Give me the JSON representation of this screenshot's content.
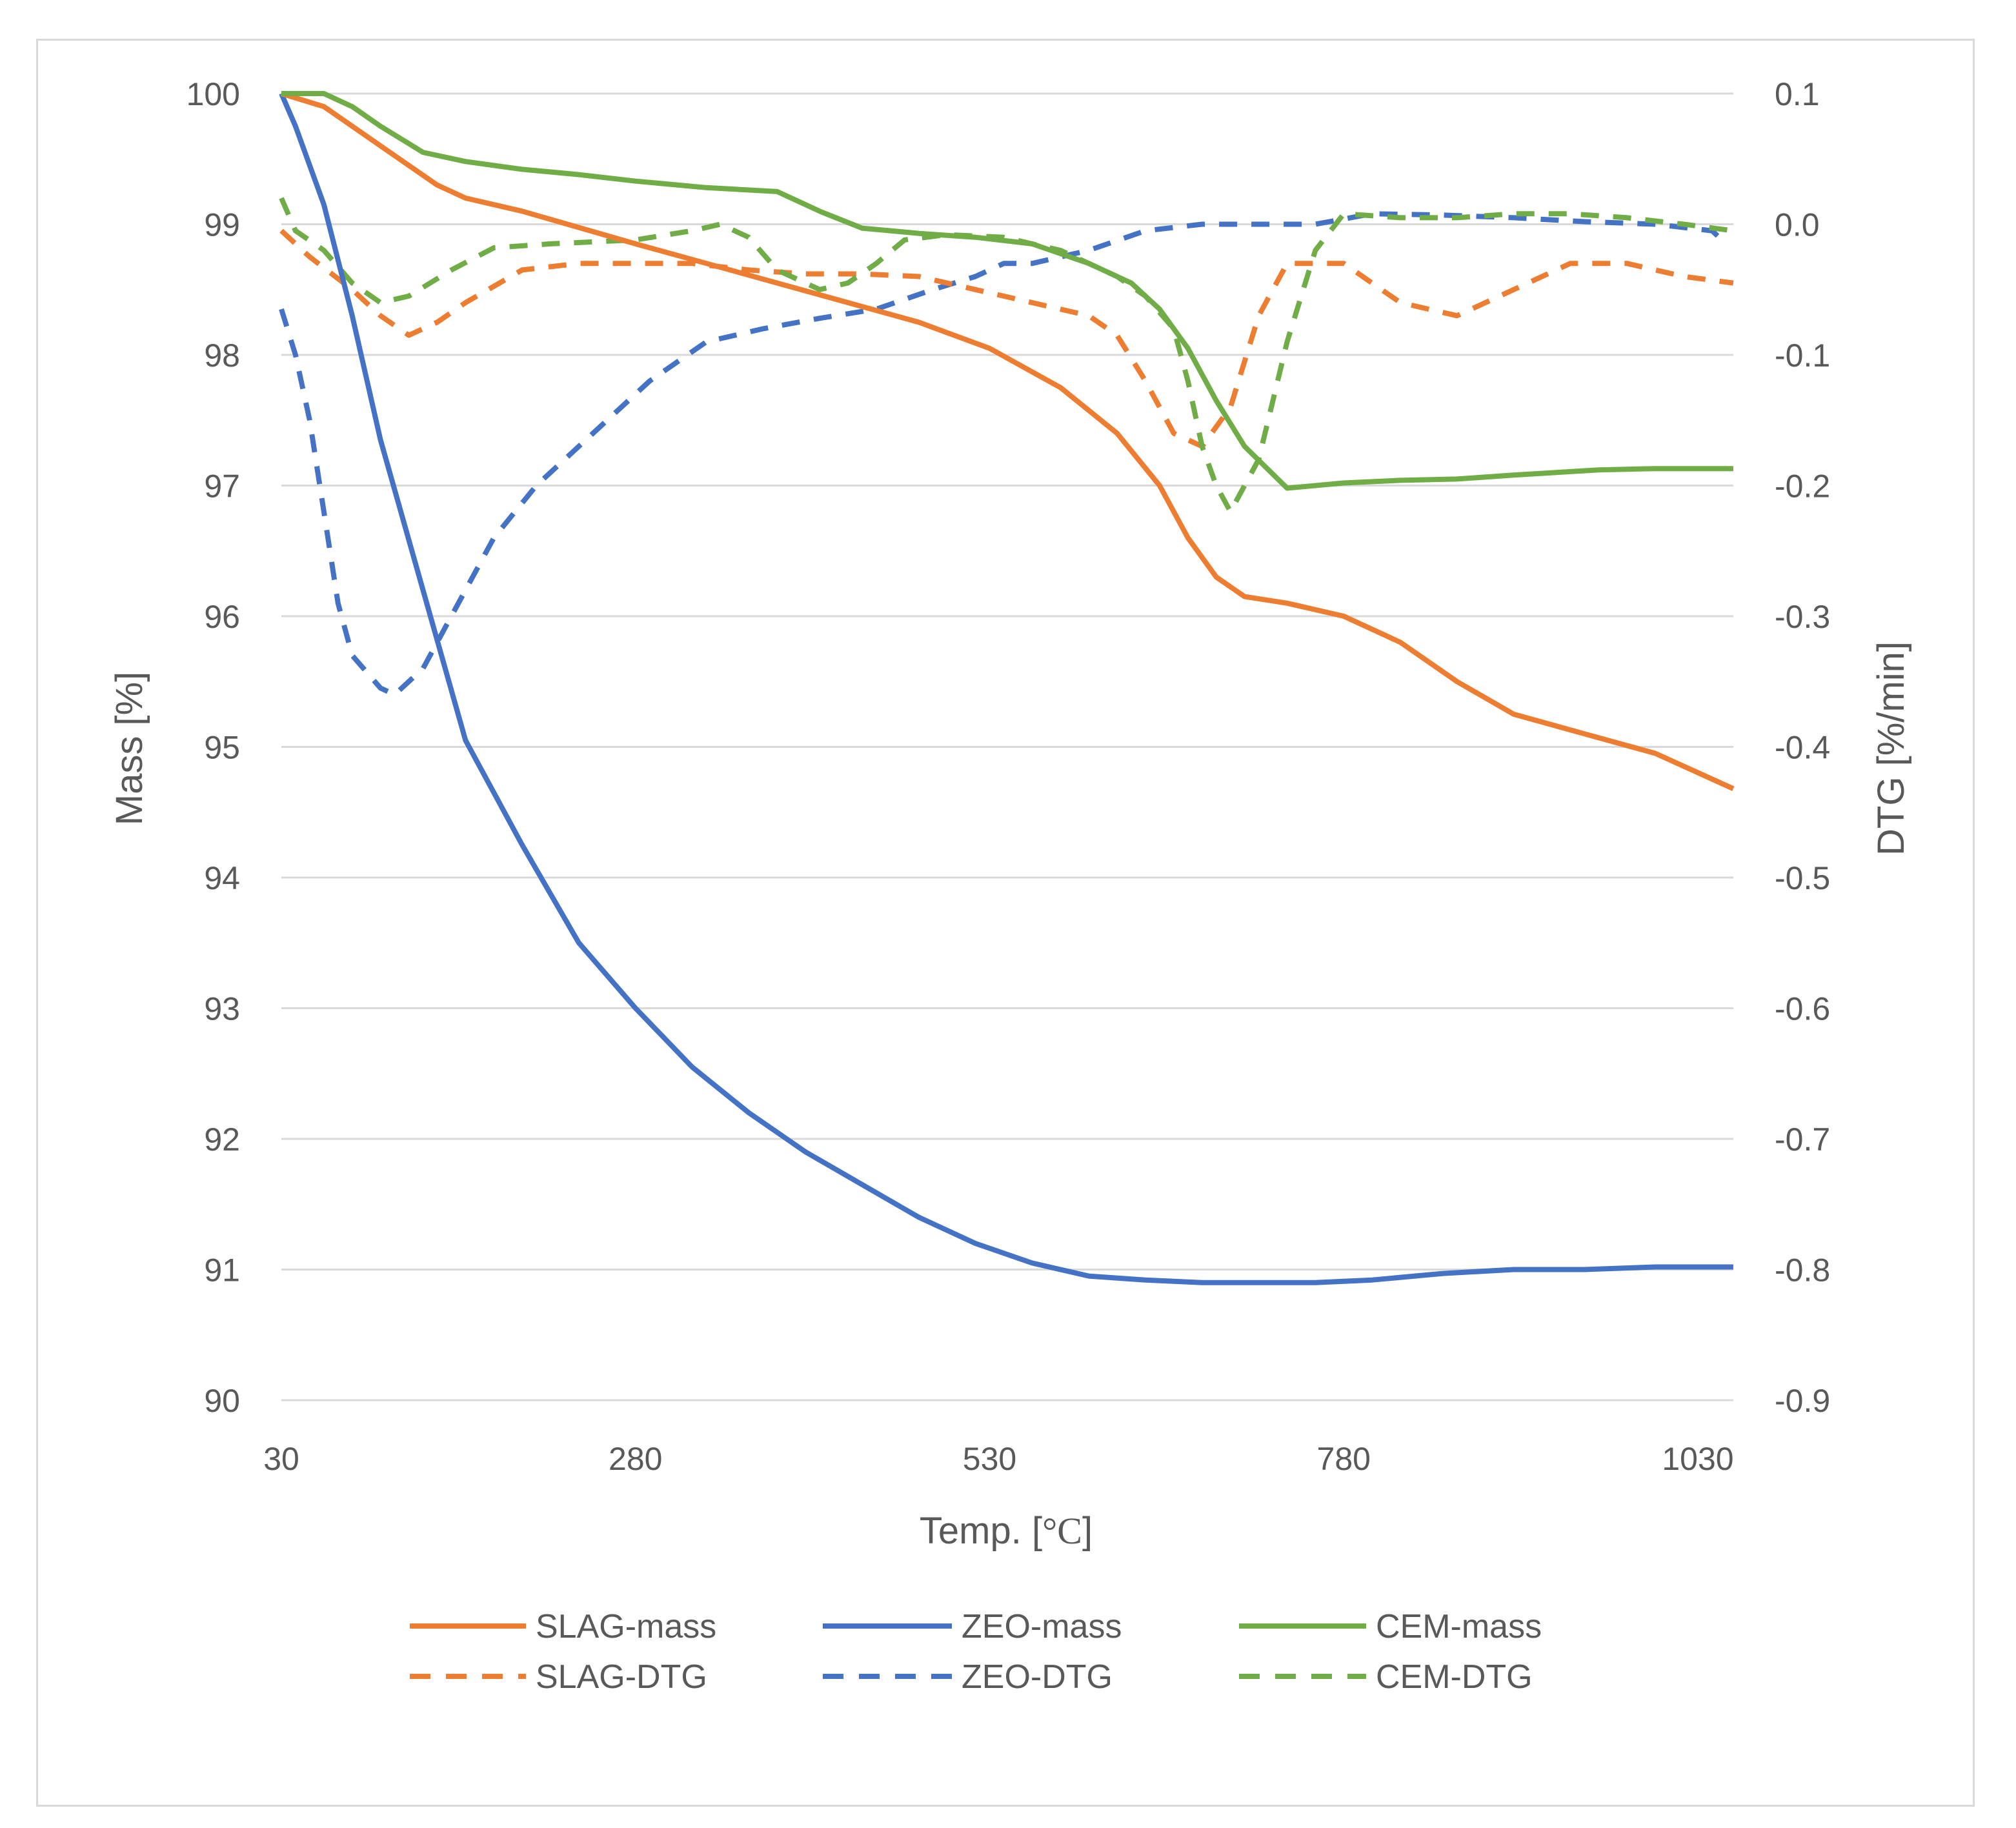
{
  "chart_data": {
    "type": "line",
    "title": "",
    "xlabel_prefix": "Temp. [",
    "xlabel_unit": "°C",
    "xlabel_suffix": "]",
    "ylabel": "Mass [%]",
    "y2label": "DTG [%/min]",
    "xlim": [
      30,
      1055
    ],
    "ylim": [
      90,
      100
    ],
    "y2lim": [
      -0.9,
      0.1
    ],
    "x_ticks": [
      "30",
      "280",
      "530",
      "780",
      "1030"
    ],
    "y_ticks": [
      "100",
      "99",
      "98",
      "97",
      "96",
      "95",
      "94",
      "93",
      "92",
      "91",
      "90"
    ],
    "y2_ticks": [
      "0.1",
      "0.0",
      "-0.1",
      "-0.2",
      "-0.3",
      "-0.4",
      "-0.5",
      "-0.6",
      "-0.7",
      "-0.8",
      "-0.9"
    ],
    "grid": true,
    "legend_position": "bottom",
    "series": [
      {
        "name": "SLAG-mass",
        "axis": "left",
        "style": "solid",
        "color": "#ED7D31",
        "x": [
          30,
          60,
          100,
          140,
          160,
          200,
          280,
          330,
          380,
          430,
          480,
          530,
          580,
          620,
          650,
          670,
          690,
          710,
          740,
          780,
          820,
          860,
          900,
          950,
          1000,
          1055
        ],
        "y": [
          100,
          99.9,
          99.6,
          99.3,
          99.2,
          99.1,
          98.85,
          98.7,
          98.55,
          98.4,
          98.25,
          98.05,
          97.75,
          97.4,
          97.0,
          96.6,
          96.3,
          96.15,
          96.1,
          96.0,
          95.8,
          95.5,
          95.25,
          95.1,
          94.95,
          94.68
        ]
      },
      {
        "name": "ZEO-mass",
        "axis": "left",
        "style": "solid",
        "color": "#4472C4",
        "x": [
          30,
          40,
          60,
          80,
          100,
          130,
          160,
          200,
          240,
          280,
          320,
          360,
          400,
          440,
          480,
          520,
          560,
          600,
          640,
          680,
          720,
          760,
          800,
          850,
          900,
          950,
          1000,
          1055
        ],
        "y": [
          100,
          99.75,
          99.15,
          98.3,
          97.35,
          96.2,
          95.05,
          94.25,
          93.5,
          93.0,
          92.55,
          92.2,
          91.9,
          91.65,
          91.4,
          91.2,
          91.05,
          90.95,
          90.92,
          90.9,
          90.9,
          90.9,
          90.92,
          90.97,
          91.0,
          91.0,
          91.02,
          91.02
        ]
      },
      {
        "name": "CEM-mass",
        "axis": "left",
        "style": "solid",
        "color": "#70AD47",
        "x": [
          30,
          60,
          80,
          100,
          130,
          160,
          200,
          240,
          280,
          330,
          380,
          410,
          440,
          460,
          480,
          520,
          560,
          600,
          630,
          650,
          670,
          690,
          710,
          740,
          780,
          820,
          860,
          900,
          960,
          1000,
          1055
        ],
        "y": [
          100,
          100,
          99.9,
          99.75,
          99.55,
          99.48,
          99.42,
          99.38,
          99.33,
          99.28,
          99.25,
          99.1,
          98.97,
          98.95,
          98.93,
          98.9,
          98.85,
          98.7,
          98.55,
          98.35,
          98.05,
          97.65,
          97.3,
          96.98,
          97.02,
          97.04,
          97.05,
          97.08,
          97.12,
          97.13,
          97.13
        ]
      },
      {
        "name": "SLAG-DTG",
        "axis": "right",
        "style": "dashed",
        "color": "#ED7D31",
        "x": [
          30,
          50,
          80,
          100,
          120,
          140,
          160,
          200,
          240,
          280,
          320,
          360,
          400,
          440,
          480,
          520,
          560,
          600,
          620,
          640,
          660,
          680,
          700,
          720,
          740,
          780,
          820,
          860,
          900,
          940,
          980,
          1020,
          1055
        ],
        "y": [
          -0.005,
          -0.025,
          -0.05,
          -0.07,
          -0.085,
          -0.075,
          -0.06,
          -0.035,
          -0.03,
          -0.03,
          -0.03,
          -0.035,
          -0.038,
          -0.038,
          -0.04,
          -0.05,
          -0.06,
          -0.07,
          -0.085,
          -0.12,
          -0.16,
          -0.17,
          -0.14,
          -0.07,
          -0.03,
          -0.03,
          -0.06,
          -0.07,
          -0.05,
          -0.03,
          -0.03,
          -0.04,
          -0.045
        ]
      },
      {
        "name": "ZEO-DTG",
        "axis": "right",
        "style": "dashed",
        "color": "#4472C4",
        "x": [
          30,
          40,
          50,
          60,
          70,
          80,
          100,
          110,
          130,
          150,
          180,
          210,
          250,
          290,
          330,
          370,
          410,
          450,
          490,
          520,
          540,
          560,
          600,
          640,
          680,
          720,
          760,
          800,
          850,
          900,
          950,
          1000,
          1040,
          1050
        ],
        "y": [
          -0.065,
          -0.1,
          -0.15,
          -0.22,
          -0.29,
          -0.33,
          -0.355,
          -0.36,
          -0.34,
          -0.3,
          -0.24,
          -0.2,
          -0.16,
          -0.12,
          -0.09,
          -0.08,
          -0.072,
          -0.065,
          -0.05,
          -0.04,
          -0.03,
          -0.03,
          -0.02,
          -0.005,
          0.0,
          0.0,
          0.0,
          0.008,
          0.007,
          0.005,
          0.002,
          0.0,
          -0.005,
          -0.015
        ]
      },
      {
        "name": "CEM-DTG",
        "axis": "right",
        "style": "dashed",
        "color": "#70AD47",
        "x": [
          30,
          40,
          60,
          80,
          100,
          120,
          150,
          180,
          220,
          280,
          320,
          340,
          360,
          380,
          410,
          430,
          450,
          470,
          500,
          540,
          580,
          620,
          640,
          660,
          670,
          680,
          690,
          700,
          720,
          740,
          760,
          780,
          820,
          860,
          900,
          940,
          980,
          1020,
          1055
        ],
        "y": [
          0.02,
          -0.005,
          -0.02,
          -0.045,
          -0.06,
          -0.055,
          -0.035,
          -0.018,
          -0.015,
          -0.012,
          -0.005,
          0.0,
          -0.01,
          -0.035,
          -0.05,
          -0.045,
          -0.03,
          -0.012,
          -0.008,
          -0.01,
          -0.02,
          -0.04,
          -0.055,
          -0.08,
          -0.12,
          -0.17,
          -0.2,
          -0.22,
          -0.18,
          -0.09,
          -0.02,
          0.008,
          0.005,
          0.005,
          0.008,
          0.008,
          0.005,
          0.0,
          -0.005
        ]
      }
    ]
  }
}
